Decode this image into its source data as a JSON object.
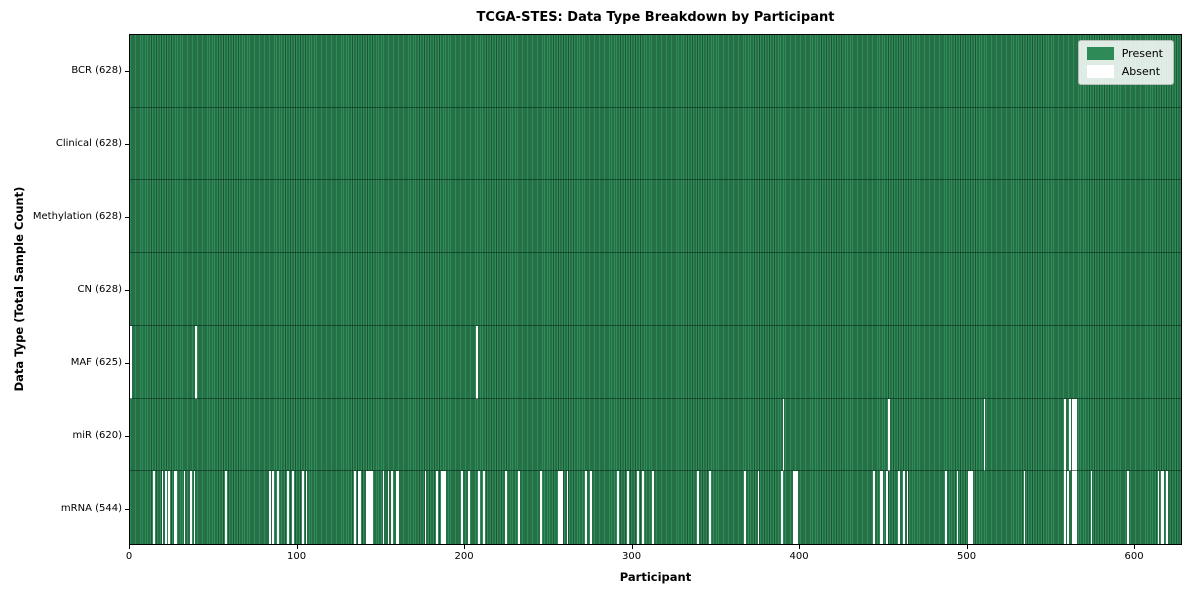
{
  "title": "TCGA-STES: Data Type Breakdown by Participant",
  "colors": {
    "present_fill": "#2f8b57",
    "present_edge": "#1e5637",
    "absent": "#ffffff",
    "row_separator": "rgba(5,35,20,0.55)",
    "legend_present_swatch": "#2e8b57",
    "legend_absent_swatch": "#ffffff"
  },
  "chart_data": {
    "type": "heatmap",
    "title": "TCGA-STES: Data Type Breakdown by Participant",
    "xlabel": "Participant",
    "ylabel": "Data Type (Total Sample Count)",
    "x_ticks": [
      0,
      100,
      200,
      300,
      400,
      500,
      600
    ],
    "n_participants": 628,
    "xlim": [
      0,
      628
    ],
    "grid": false,
    "legend_position": "upper right",
    "legend": [
      {
        "label": "Present",
        "color": "#2e8b57"
      },
      {
        "label": "Absent",
        "color": "#ffffff"
      }
    ],
    "rows": [
      {
        "label": "BCR (628)",
        "data_type": "BCR",
        "present_count": 628,
        "absent_count": 0,
        "absent_participants": []
      },
      {
        "label": "Clinical (628)",
        "data_type": "Clinical",
        "present_count": 628,
        "absent_count": 0,
        "absent_participants": []
      },
      {
        "label": "Methylation (628)",
        "data_type": "Methylation",
        "present_count": 628,
        "absent_count": 0,
        "absent_participants": []
      },
      {
        "label": "CN (628)",
        "data_type": "CN",
        "present_count": 628,
        "absent_count": 0,
        "absent_participants": []
      },
      {
        "label": "MAF (625)",
        "data_type": "MAF",
        "present_count": 625,
        "absent_count": 3,
        "absent_participants": [
          0,
          39,
          207
        ]
      },
      {
        "label": "miR (620)",
        "data_type": "miR",
        "present_count": 620,
        "absent_count": 8,
        "absent_participants": [
          390,
          453,
          510,
          558,
          561,
          563,
          564,
          565
        ]
      },
      {
        "label": "mRNA (544)",
        "data_type": "mRNA",
        "present_count": 544,
        "absent_count": 84,
        "absent_participants": [
          14,
          19,
          21,
          23,
          26,
          27,
          32,
          36,
          38,
          57,
          83,
          85,
          88,
          94,
          97,
          103,
          105,
          134,
          136,
          137,
          141,
          142,
          143,
          144,
          151,
          154,
          156,
          159,
          160,
          176,
          183,
          186,
          187,
          188,
          198,
          202,
          208,
          211,
          224,
          232,
          245,
          256,
          257,
          258,
          261,
          272,
          275,
          291,
          297,
          303,
          306,
          312,
          339,
          346,
          367,
          375,
          389,
          396,
          397,
          398,
          444,
          448,
          449,
          452,
          459,
          462,
          464,
          487,
          494,
          501,
          502,
          503,
          534,
          558,
          560,
          563,
          564,
          565,
          574,
          596,
          614,
          616,
          617,
          619
        ]
      }
    ]
  }
}
